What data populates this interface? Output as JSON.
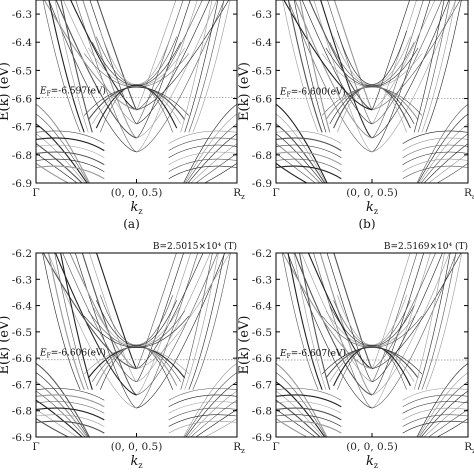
{
  "figure": {
    "panels": [
      {
        "id": "a",
        "caption": "(a)",
        "field": "",
        "fermi_label": "E",
        "fermi_sub": "F",
        "fermi_value": "=-6.597(eV)",
        "y_ticks": [
          "-6.3",
          "-6.4",
          "-6.5",
          "-6.6",
          "-6.7",
          "-6.8",
          "-6.9"
        ],
        "x_ticks": {
          "left": "Γ",
          "mid": "(0, 0, 0.5)",
          "right": "R",
          "right_sub": "z"
        }
      },
      {
        "id": "b",
        "caption": "(b)",
        "field": "",
        "fermi_label": "E",
        "fermi_sub": "F",
        "fermi_value": "=-6.600(eV)",
        "y_ticks": [
          "-6.3",
          "-6.4",
          "-6.5",
          "-6.6",
          "-6.7",
          "-6.8",
          "-6.9"
        ],
        "x_ticks": {
          "left": "Γ",
          "mid": "(0, 0, 0.5)",
          "right": "R",
          "right_sub": "a"
        }
      },
      {
        "id": "c",
        "caption": "",
        "field": "B=2.5015×10⁴ (T)",
        "fermi_label": "E",
        "fermi_sub": "F",
        "fermi_value": "=-6.606(eV)",
        "y_ticks": [
          "-6.2",
          "-6.3",
          "-6.4",
          "-6.5",
          "-6.6",
          "-6.7",
          "-6.8",
          "-6.9"
        ],
        "x_ticks": {
          "left": "Γ",
          "mid": "(0, 0, 0.5)",
          "right": "R",
          "right_sub": "z"
        }
      },
      {
        "id": "d",
        "caption": "",
        "field": "B=2.5169×10⁴ (T)",
        "fermi_label": "E",
        "fermi_sub": "F",
        "fermi_value": "=-6.607(eV)",
        "y_ticks": [
          "-6.2",
          "-6.3",
          "-6.4",
          "-6.5",
          "-6.6",
          "-6.7",
          "-6.8",
          "-6.9"
        ],
        "x_ticks": {
          "left": "Γ",
          "mid": "(0, 0, 0.5)",
          "right": "R",
          "right_sub": "z"
        }
      }
    ],
    "y_axis_label": "E(k) (eV)",
    "x_axis_label": "k",
    "x_axis_sub": "z"
  }
}
